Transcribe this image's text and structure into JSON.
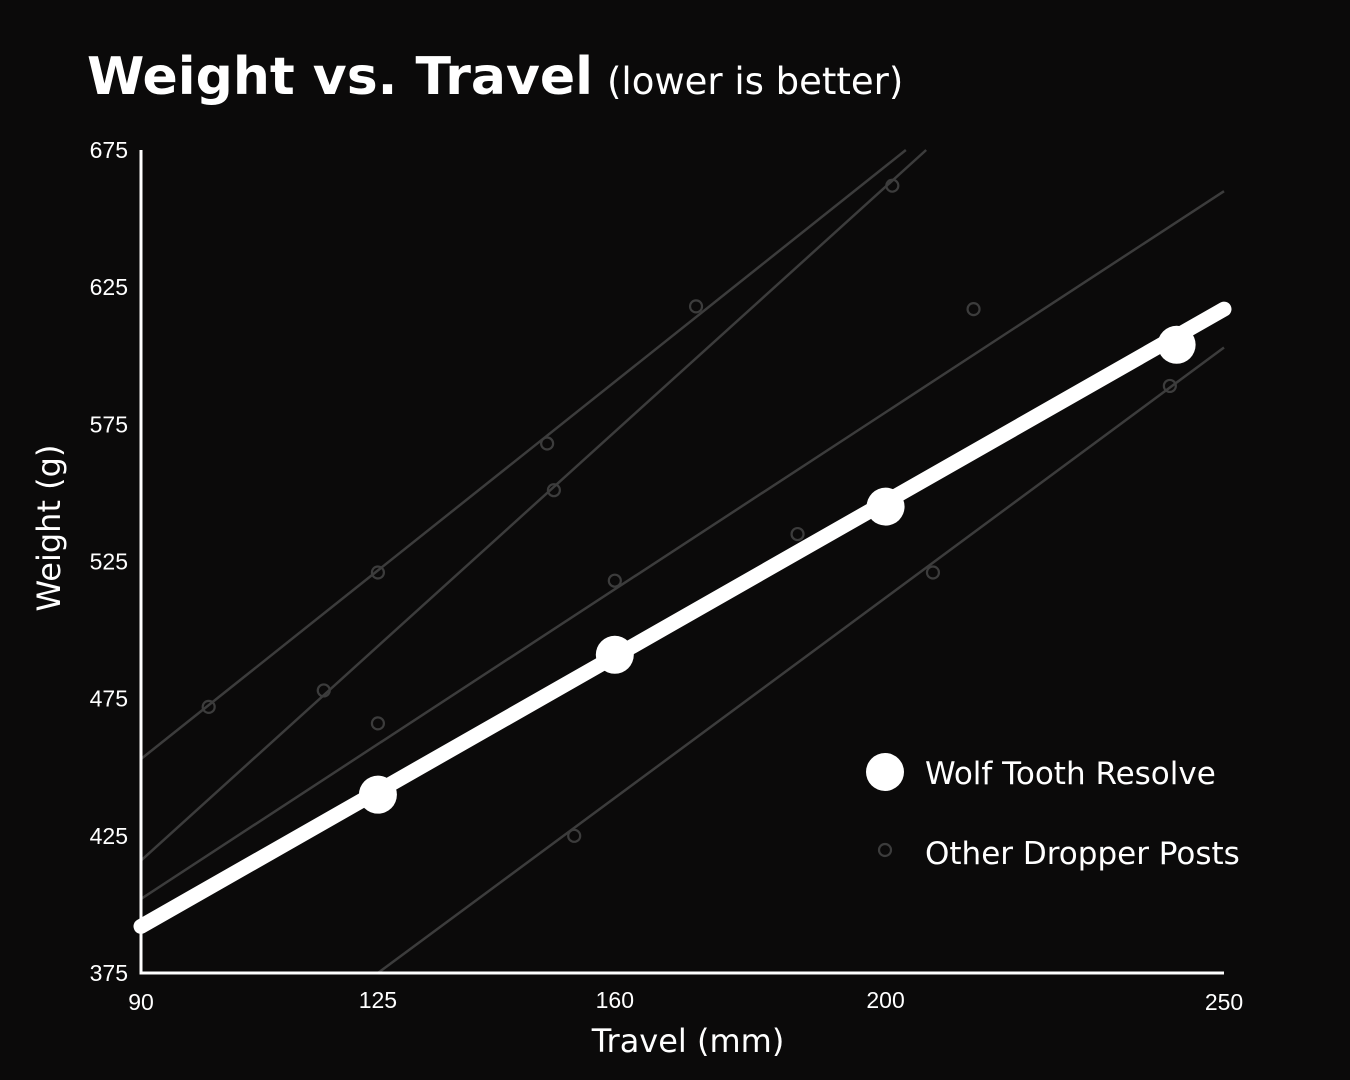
{
  "chart_data": {
    "type": "scatter",
    "title": "Weight vs. Travel",
    "subtitle": "(lower is better)",
    "xlabel": "Travel (mm)",
    "ylabel": "Weight (g)",
    "xlim": [
      90,
      250
    ],
    "ylim": [
      375,
      675
    ],
    "x_ticks": [
      {
        "value": 90,
        "label": "90"
      },
      {
        "value": 125,
        "label": "125"
      },
      {
        "value": 160,
        "label": "160"
      },
      {
        "value": 200,
        "label": "200"
      },
      {
        "value": 250,
        "label": "250"
      }
    ],
    "y_ticks": [
      {
        "value": 375,
        "label": "375"
      },
      {
        "value": 425,
        "label": "425"
      },
      {
        "value": 475,
        "label": "475"
      },
      {
        "value": 525,
        "label": "525"
      },
      {
        "value": 575,
        "label": "575"
      },
      {
        "value": 625,
        "label": "625"
      },
      {
        "value": 675,
        "label": "675"
      }
    ],
    "grid": false,
    "legend": "right",
    "colors": {
      "background": "#0b0a0a",
      "primary": "#ffffff",
      "others": "#3c3c3c"
    },
    "series": [
      {
        "name": "Wolf Tooth Resolve",
        "points": [
          {
            "x": 125,
            "y": 440
          },
          {
            "x": 160,
            "y": 491
          },
          {
            "x": 200,
            "y": 545
          },
          {
            "x": 243,
            "y": 604
          }
        ],
        "trend": {
          "x": [
            90,
            250
          ],
          "y": [
            392,
            617
          ]
        }
      },
      {
        "name": "Other Dropper Posts",
        "points": [
          {
            "x": 100,
            "y": 472
          },
          {
            "x": 117,
            "y": 478
          },
          {
            "x": 125,
            "y": 521
          },
          {
            "x": 125,
            "y": 466
          },
          {
            "x": 150,
            "y": 568
          },
          {
            "x": 151,
            "y": 551
          },
          {
            "x": 154,
            "y": 425
          },
          {
            "x": 160,
            "y": 518
          },
          {
            "x": 172,
            "y": 618
          },
          {
            "x": 187,
            "y": 535
          },
          {
            "x": 201,
            "y": 662
          },
          {
            "x": 207,
            "y": 521
          },
          {
            "x": 213,
            "y": 617
          },
          {
            "x": 242,
            "y": 589
          }
        ],
        "trends": [
          {
            "x": [
              90,
              203
            ],
            "y": [
              453,
              675
            ]
          },
          {
            "x": [
              90,
              206
            ],
            "y": [
              416,
              675
            ]
          },
          {
            "x": [
              90,
              250
            ],
            "y": [
              402,
              660
            ]
          },
          {
            "x": [
              125,
              250
            ],
            "y": [
              375,
              603
            ]
          }
        ]
      }
    ]
  }
}
